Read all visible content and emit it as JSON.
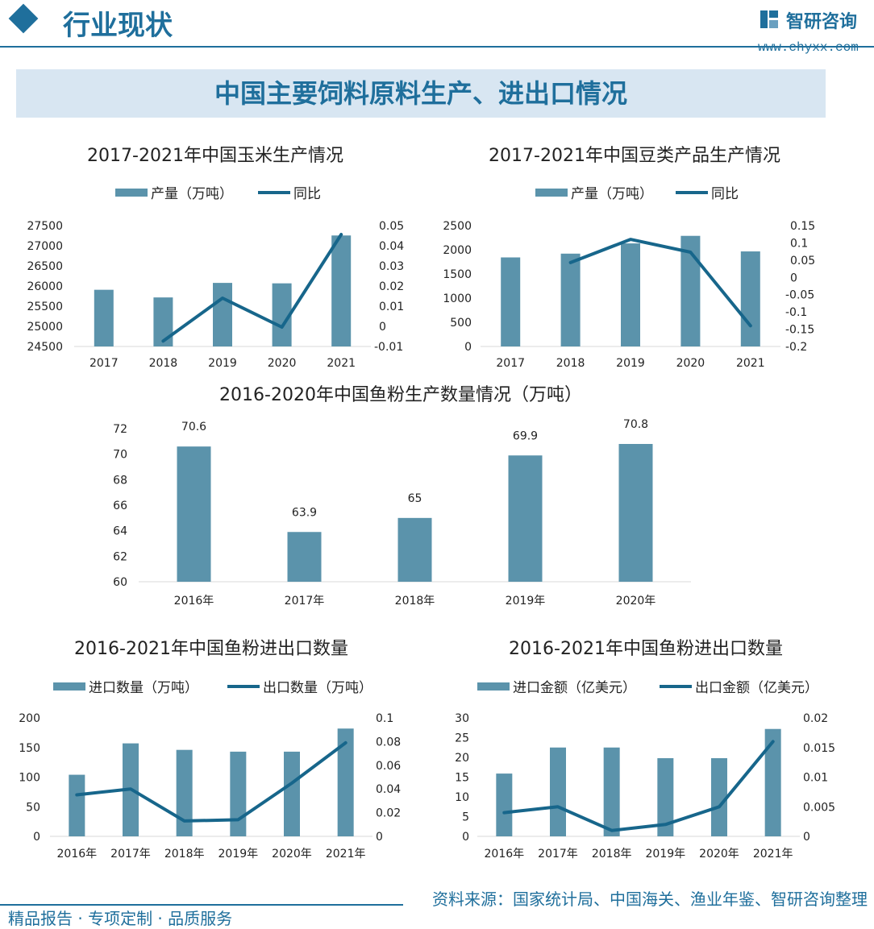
{
  "header": {
    "title": "行业现状",
    "brand_name": "智研咨询",
    "brand_url": "www.chyxx.com"
  },
  "banner": {
    "title": "中国主要饲料原料生产、进出口情况"
  },
  "footer": {
    "left": "精品报告 · 专项定制 · 品质服务",
    "source": "资料来源：国家统计局、中国海关、渔业年鉴、智研咨询整理"
  },
  "colors": {
    "bar": "#5b93ab",
    "line": "#17668b",
    "brand": "#1f6f9c"
  },
  "chart_data": [
    {
      "id": "corn",
      "type": "bar+line",
      "title": "2017-2021年中国玉米生产情况",
      "categories": [
        "2017",
        "2018",
        "2019",
        "2020",
        "2021"
      ],
      "series": [
        {
          "name": "产量（万吨）",
          "type": "bar",
          "axis": "left",
          "values": [
            25907,
            25717,
            26078,
            26067,
            27255
          ]
        },
        {
          "name": "同比",
          "type": "line",
          "axis": "right",
          "values": [
            null,
            -0.0073,
            0.014,
            -0.0004,
            0.0456
          ]
        }
      ],
      "ylim_left": [
        24500,
        27500
      ],
      "yticks_left": [
        "27500",
        "27000",
        "26500",
        "26000",
        "25500",
        "25000",
        "24500"
      ],
      "ylim_right": [
        -0.01,
        0.05
      ],
      "yticks_right": [
        "0.05",
        "0.04",
        "0.03",
        "0.02",
        "0.01",
        "0",
        "-0.01"
      ]
    },
    {
      "id": "beans",
      "type": "bar+line",
      "title": "2017-2021年中国豆类产品生产情况",
      "categories": [
        "2017",
        "2018",
        "2019",
        "2020",
        "2021"
      ],
      "series": [
        {
          "name": "产量（万吨）",
          "type": "bar",
          "axis": "left",
          "values": [
            1842,
            1920,
            2132,
            2288,
            1966
          ]
        },
        {
          "name": "同比",
          "type": "line",
          "axis": "right",
          "values": [
            null,
            0.043,
            0.11,
            0.073,
            -0.14
          ]
        }
      ],
      "ylim_left": [
        0,
        2500
      ],
      "yticks_left": [
        "2500",
        "2000",
        "1500",
        "1000",
        "500",
        "0"
      ],
      "ylim_right": [
        -0.2,
        0.15
      ],
      "yticks_right": [
        "0.15",
        "0.1",
        "0.05",
        "0",
        "-0.05",
        "-0.1",
        "-0.15",
        "-0.2"
      ]
    },
    {
      "id": "fishmeal_prod",
      "type": "bar",
      "title": "2016-2020年中国鱼粉生产数量情况（万吨）",
      "categories": [
        "2016年",
        "2017年",
        "2018年",
        "2019年",
        "2020年"
      ],
      "values": [
        70.6,
        63.9,
        65,
        69.9,
        70.8
      ],
      "data_labels": [
        "70.6",
        "63.9",
        "65",
        "69.9",
        "70.8"
      ],
      "ylim": [
        60,
        72
      ],
      "yticks": [
        "72",
        "70",
        "68",
        "66",
        "64",
        "62",
        "60"
      ]
    },
    {
      "id": "fishmeal_qty",
      "type": "bar+line",
      "title": "2016-2021年中国鱼粉进出口数量",
      "categories": [
        "2016年",
        "2017年",
        "2018年",
        "2019年",
        "2020年",
        "2021年"
      ],
      "series": [
        {
          "name": "进口数量（万吨）",
          "type": "bar",
          "axis": "left",
          "values": [
            104,
            157,
            146,
            143,
            143,
            182
          ]
        },
        {
          "name": "出口数量（万吨）",
          "type": "line",
          "axis": "right",
          "values": [
            0.035,
            0.04,
            0.013,
            0.014,
            0.045,
            0.079
          ]
        }
      ],
      "ylim_left": [
        0,
        200
      ],
      "yticks_left": [
        "200",
        "150",
        "100",
        "50",
        "0"
      ],
      "ylim_right": [
        0,
        0.1
      ],
      "yticks_right": [
        "0.1",
        "0.08",
        "0.06",
        "0.04",
        "0.02",
        "0"
      ]
    },
    {
      "id": "fishmeal_value",
      "type": "bar+line",
      "title": "2016-2021年中国鱼粉进出口数量",
      "categories": [
        "2016年",
        "2017年",
        "2018年",
        "2019年",
        "2020年",
        "2021年"
      ],
      "series": [
        {
          "name": "进口金额（亿美元）",
          "type": "bar",
          "axis": "left",
          "values": [
            15.9,
            22.5,
            22.5,
            19.8,
            19.8,
            27.2
          ]
        },
        {
          "name": "出口金额（亿美元）",
          "type": "line",
          "axis": "right",
          "values": [
            0.004,
            0.005,
            0.001,
            0.002,
            0.005,
            0.016
          ]
        }
      ],
      "ylim_left": [
        0,
        30
      ],
      "yticks_left": [
        "30",
        "25",
        "20",
        "15",
        "10",
        "5",
        "0"
      ],
      "ylim_right": [
        0,
        0.02
      ],
      "yticks_right": [
        "0.02",
        "0.015",
        "0.01",
        "0.005",
        "0"
      ]
    }
  ]
}
